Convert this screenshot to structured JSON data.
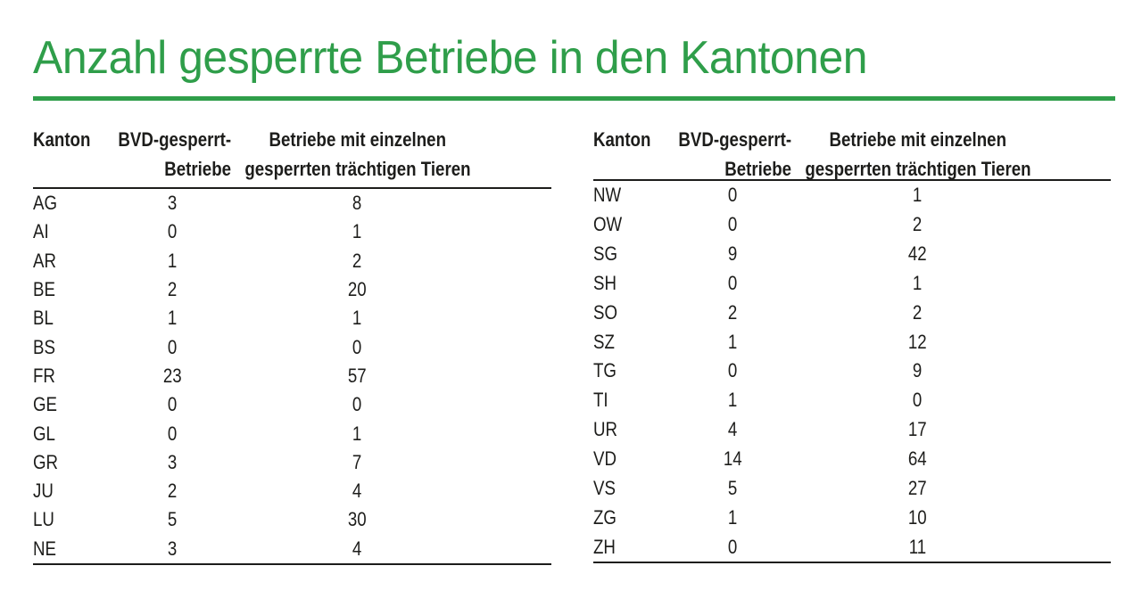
{
  "title": "Anzahl gesperrte Betriebe in den Kantonen",
  "colors": {
    "accent_green": "#2f9e4a",
    "text": "#1d1d1b"
  },
  "tables": [
    {
      "headers": {
        "kanton": "Kanton",
        "bvd_line1": "BVD-gesperrt-",
        "bvd_line2": "Betriebe",
        "einzel_line1": "Betriebe mit einzelnen",
        "einzel_line2": "gesperrten trächtigen Tieren"
      },
      "rows": [
        {
          "kanton": "AG",
          "bvd": "3",
          "einzel": "8"
        },
        {
          "kanton": "AI",
          "bvd": "0",
          "einzel": "1"
        },
        {
          "kanton": "AR",
          "bvd": "1",
          "einzel": "2"
        },
        {
          "kanton": "BE",
          "bvd": "2",
          "einzel": "20"
        },
        {
          "kanton": "BL",
          "bvd": "1",
          "einzel": "1"
        },
        {
          "kanton": "BS",
          "bvd": "0",
          "einzel": "0"
        },
        {
          "kanton": "FR",
          "bvd": "23",
          "einzel": "57"
        },
        {
          "kanton": "GE",
          "bvd": "0",
          "einzel": "0"
        },
        {
          "kanton": "GL",
          "bvd": "0",
          "einzel": "1"
        },
        {
          "kanton": "GR",
          "bvd": "3",
          "einzel": "7"
        },
        {
          "kanton": "JU",
          "bvd": "2",
          "einzel": "4"
        },
        {
          "kanton": "LU",
          "bvd": "5",
          "einzel": "30"
        },
        {
          "kanton": "NE",
          "bvd": "3",
          "einzel": "4"
        }
      ]
    },
    {
      "headers": {
        "kanton": "Kanton",
        "bvd_line1": "BVD-gesperrt-",
        "bvd_line2": "Betriebe",
        "einzel_line1": "Betriebe mit einzelnen",
        "einzel_line2": "gesperrten trächtigen Tieren"
      },
      "rows": [
        {
          "kanton": "NW",
          "bvd": "0",
          "einzel": "1"
        },
        {
          "kanton": "OW",
          "bvd": "0",
          "einzel": "2"
        },
        {
          "kanton": "SG",
          "bvd": "9",
          "einzel": "42"
        },
        {
          "kanton": "SH",
          "bvd": "0",
          "einzel": "1"
        },
        {
          "kanton": "SO",
          "bvd": "2",
          "einzel": "2"
        },
        {
          "kanton": "SZ",
          "bvd": "1",
          "einzel": "12"
        },
        {
          "kanton": "TG",
          "bvd": "0",
          "einzel": "9"
        },
        {
          "kanton": "TI",
          "bvd": "1",
          "einzel": "0"
        },
        {
          "kanton": "UR",
          "bvd": "4",
          "einzel": "17"
        },
        {
          "kanton": "VD",
          "bvd": "14",
          "einzel": "64"
        },
        {
          "kanton": "VS",
          "bvd": "5",
          "einzel": "27"
        },
        {
          "kanton": "ZG",
          "bvd": "1",
          "einzel": "10"
        },
        {
          "kanton": "ZH",
          "bvd": "0",
          "einzel": "11"
        }
      ]
    }
  ],
  "chart_data": {
    "type": "table",
    "title": "Anzahl gesperrte Betriebe in den Kantonen",
    "columns": [
      "Kanton",
      "BVD-gesperrt-Betriebe",
      "Betriebe mit einzelnen gesperrten trächtigen Tieren"
    ],
    "rows": [
      [
        "AG",
        3,
        8
      ],
      [
        "AI",
        0,
        1
      ],
      [
        "AR",
        1,
        2
      ],
      [
        "BE",
        2,
        20
      ],
      [
        "BL",
        1,
        1
      ],
      [
        "BS",
        0,
        0
      ],
      [
        "FR",
        23,
        57
      ],
      [
        "GE",
        0,
        0
      ],
      [
        "GL",
        0,
        1
      ],
      [
        "GR",
        3,
        7
      ],
      [
        "JU",
        2,
        4
      ],
      [
        "LU",
        5,
        30
      ],
      [
        "NE",
        3,
        4
      ],
      [
        "NW",
        0,
        1
      ],
      [
        "OW",
        0,
        2
      ],
      [
        "SG",
        9,
        42
      ],
      [
        "SH",
        0,
        1
      ],
      [
        "SO",
        2,
        2
      ],
      [
        "SZ",
        1,
        12
      ],
      [
        "TG",
        0,
        9
      ],
      [
        "TI",
        1,
        0
      ],
      [
        "UR",
        4,
        17
      ],
      [
        "VD",
        14,
        64
      ],
      [
        "VS",
        5,
        27
      ],
      [
        "ZG",
        1,
        10
      ],
      [
        "ZH",
        0,
        11
      ]
    ]
  }
}
